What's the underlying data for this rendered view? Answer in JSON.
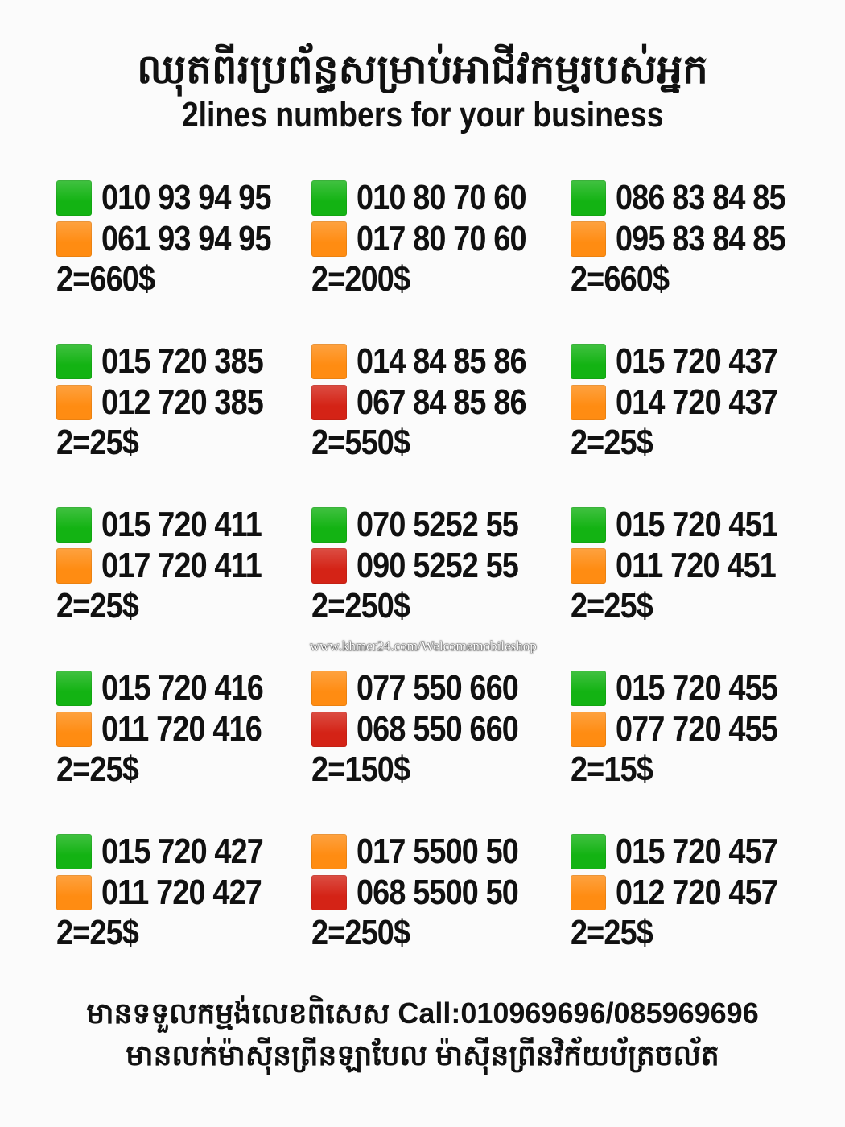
{
  "header": {
    "title_khmer": "ឈុតពីរប្រព័ន្ធសម្រាប់អាជីវកម្មរបស់អ្នក",
    "title_english": "2lines numbers for your business"
  },
  "colors": {
    "green": "#13b313",
    "orange": "#ff8c12",
    "red": "#d42316"
  },
  "groups": [
    {
      "lines": [
        {
          "color": "green",
          "number": "010 93 94 95"
        },
        {
          "color": "orange",
          "number": "061 93 94 95"
        }
      ],
      "price": "2=660$"
    },
    {
      "lines": [
        {
          "color": "green",
          "number": "010 80 70 60"
        },
        {
          "color": "orange",
          "number": "017 80 70 60"
        }
      ],
      "price": "2=200$"
    },
    {
      "lines": [
        {
          "color": "green",
          "number": "086 83 84 85"
        },
        {
          "color": "orange",
          "number": "095 83 84 85"
        }
      ],
      "price": "2=660$"
    },
    {
      "lines": [
        {
          "color": "green",
          "number": "015 720 385"
        },
        {
          "color": "orange",
          "number": "012 720 385"
        }
      ],
      "price": "2=25$"
    },
    {
      "lines": [
        {
          "color": "orange",
          "number": "014 84 85 86"
        },
        {
          "color": "red",
          "number": "067 84 85 86"
        }
      ],
      "price": "2=550$"
    },
    {
      "lines": [
        {
          "color": "green",
          "number": "015 720 437"
        },
        {
          "color": "orange",
          "number": "014 720 437"
        }
      ],
      "price": "2=25$"
    },
    {
      "lines": [
        {
          "color": "green",
          "number": "015 720 411"
        },
        {
          "color": "orange",
          "number": "017 720 411"
        }
      ],
      "price": "2=25$"
    },
    {
      "lines": [
        {
          "color": "green",
          "number": "070 5252 55"
        },
        {
          "color": "red",
          "number": "090 5252 55"
        }
      ],
      "price": "2=250$"
    },
    {
      "lines": [
        {
          "color": "green",
          "number": "015 720 451"
        },
        {
          "color": "orange",
          "number": "011 720 451"
        }
      ],
      "price": "2=25$"
    },
    {
      "lines": [
        {
          "color": "green",
          "number": "015 720 416"
        },
        {
          "color": "orange",
          "number": "011 720 416"
        }
      ],
      "price": "2=25$"
    },
    {
      "lines": [
        {
          "color": "orange",
          "number": "077 550 660"
        },
        {
          "color": "red",
          "number": "068 550 660"
        }
      ],
      "price": "2=150$"
    },
    {
      "lines": [
        {
          "color": "green",
          "number": "015 720 455"
        },
        {
          "color": "orange",
          "number": "077 720 455"
        }
      ],
      "price": "2=15$"
    },
    {
      "lines": [
        {
          "color": "green",
          "number": "015 720 427"
        },
        {
          "color": "orange",
          "number": "011 720 427"
        }
      ],
      "price": "2=25$"
    },
    {
      "lines": [
        {
          "color": "orange",
          "number": "017 5500 50"
        },
        {
          "color": "red",
          "number": "068 5500 50"
        }
      ],
      "price": "2=250$"
    },
    {
      "lines": [
        {
          "color": "green",
          "number": "015 720 457"
        },
        {
          "color": "orange",
          "number": "012 720 457"
        }
      ],
      "price": "2=25$"
    }
  ],
  "watermark": "www.khmer24.com/Welcomemobileshop",
  "footer": {
    "line1": "មានទទួលកម្មង់លេខពិសេស Call:010969696/085969696",
    "line2": "មានលក់ម៉ាស៊ីនព្រីនឡាបែល ម៉ាស៊ីនព្រីនវិក័យប័ត្រចល័ត"
  }
}
